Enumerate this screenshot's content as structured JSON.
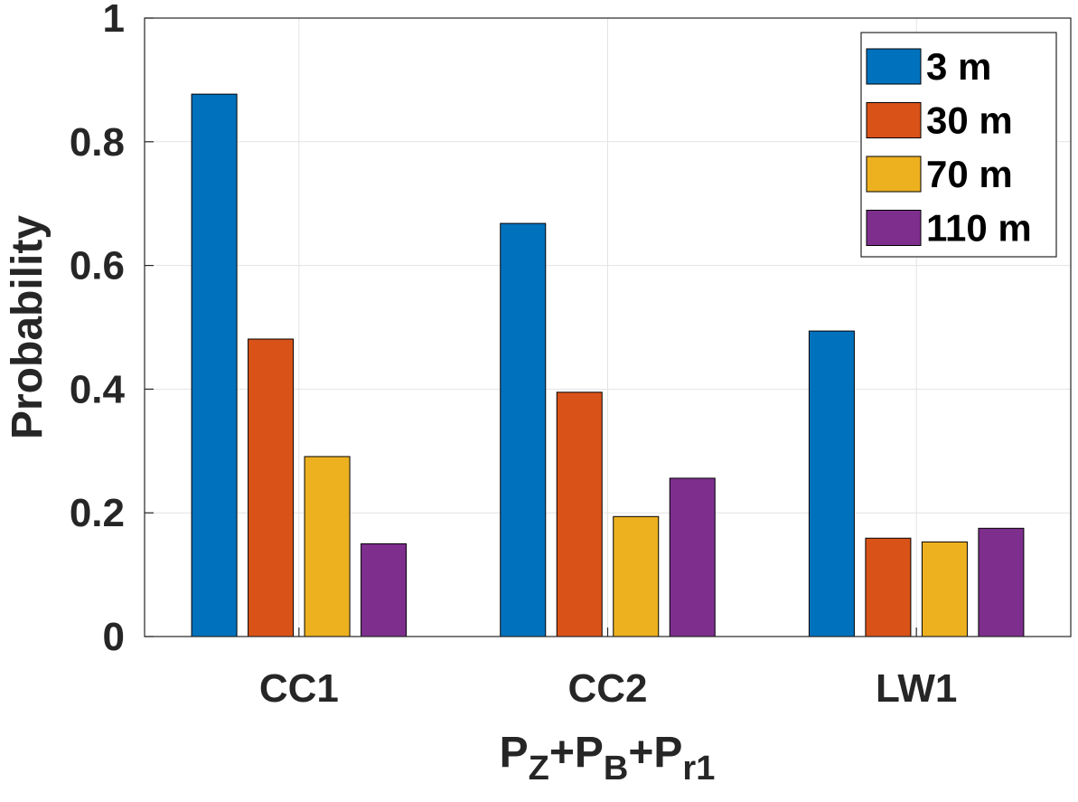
{
  "chart_data": {
    "type": "bar",
    "categories": [
      "CC1",
      "CC2",
      "LW1"
    ],
    "series": [
      {
        "name": "3 m",
        "values": [
          0.877,
          0.668,
          0.494
        ],
        "color": "#0072BD"
      },
      {
        "name": "30 m",
        "values": [
          0.481,
          0.395,
          0.159
        ],
        "color": "#D95319"
      },
      {
        "name": "70 m",
        "values": [
          0.291,
          0.194,
          0.153
        ],
        "color": "#EDB120"
      },
      {
        "name": "110 m",
        "values": [
          0.15,
          0.256,
          0.175
        ],
        "color": "#7E2F8E"
      }
    ],
    "title": "",
    "xlabel": {
      "base1": "P",
      "sub1": "Z",
      "base2": "+P",
      "sub2": "B",
      "base3": "+P",
      "sub3": "r1"
    },
    "ylabel": "Probability",
    "ylim": [
      0,
      1
    ],
    "yticks": [
      0,
      0.2,
      0.4,
      0.6,
      0.8,
      1
    ],
    "ytick_labels": [
      "0",
      "0.2",
      "0.4",
      "0.6",
      "0.8",
      "1"
    ],
    "grid": true,
    "legend_position": "top-right"
  }
}
